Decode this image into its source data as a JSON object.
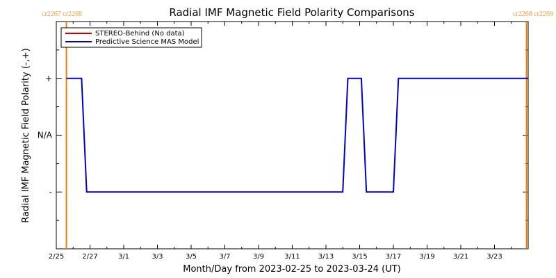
{
  "chart_data": {
    "type": "line",
    "title": "Radial IMF Magnetic Field Polarity Comparisons",
    "xlabel": "Month/Day from 2023-02-25 to 2023-03-24 (UT)",
    "ylabel": "Radial IMF Magnetic Field Polarity (-,+)",
    "x_tick_labels": [
      "2/25",
      "2/27",
      "3/1",
      "3/3",
      "3/5",
      "3/7",
      "3/9",
      "3/11",
      "3/13",
      "3/15",
      "3/17",
      "3/19",
      "3/21",
      "3/23"
    ],
    "y_tick_labels": [
      "+",
      "N/A",
      "-"
    ],
    "y_tick_values": [
      1,
      0,
      -1
    ],
    "ylim": [
      -2,
      2
    ],
    "xlim": [
      0,
      28
    ],
    "grid": false,
    "legend_position": "top-left",
    "carrington_markers": [
      {
        "label": "cr2267 cr2268",
        "x": 0.6
      },
      {
        "label": "cr2268 cr2269",
        "x": 27.9
      }
    ],
    "series": [
      {
        "name": "STEREO-Behind (No data)",
        "color": "#cc0000",
        "points": []
      },
      {
        "name": "Predictive Science MAS Model",
        "color": "#0000cc",
        "points": [
          [
            0.6,
            1
          ],
          [
            1.5,
            1
          ],
          [
            1.8,
            -1
          ],
          [
            17.0,
            -1
          ],
          [
            17.3,
            1
          ],
          [
            18.1,
            1
          ],
          [
            18.4,
            -1
          ],
          [
            20.0,
            -1
          ],
          [
            20.3,
            1
          ],
          [
            28.0,
            1
          ]
        ]
      }
    ],
    "colors": {
      "carrington_line": "#f08000",
      "axis": "#000000"
    }
  }
}
